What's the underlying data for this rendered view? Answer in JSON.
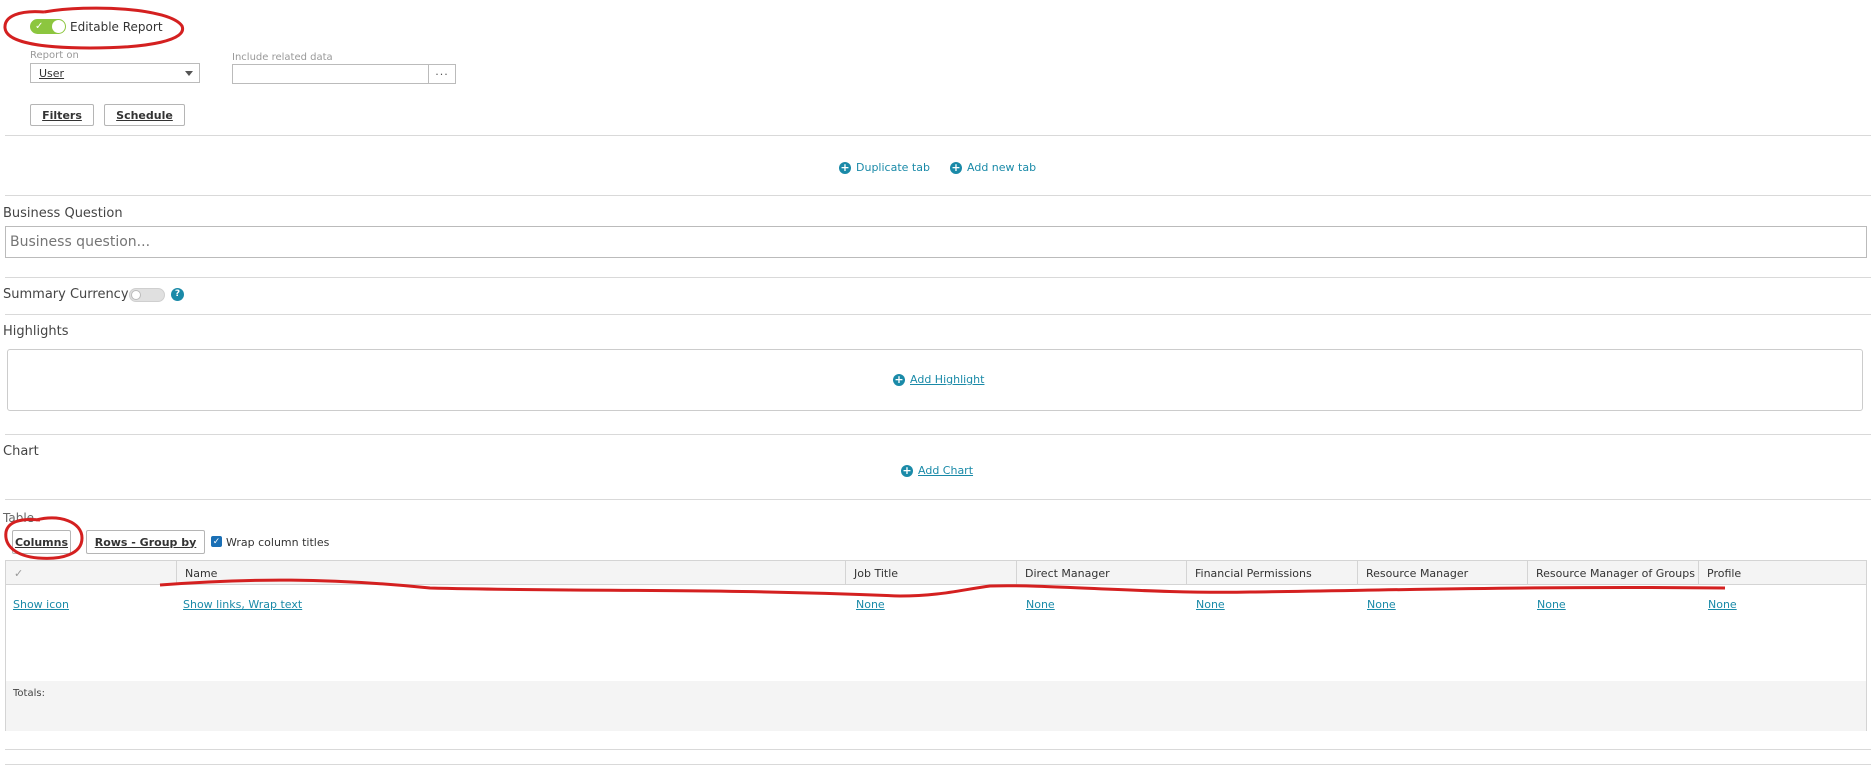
{
  "header": {
    "editable_report_label": "Editable Report",
    "report_on_label": "Report on",
    "report_on_value": "User",
    "include_related_label": "Include related data",
    "include_related_value": "",
    "ellipsis_label": "···",
    "filters_button": "Filters",
    "schedule_button": "Schedule"
  },
  "tabs": {
    "duplicate_tab": "Duplicate tab",
    "add_new_tab": "Add new tab"
  },
  "business_question": {
    "label": "Business Question",
    "placeholder": "Business question..."
  },
  "summary_currency": {
    "label": "Summary Currency",
    "help": "?"
  },
  "highlights": {
    "label": "Highlights",
    "add": "Add Highlight"
  },
  "chart": {
    "label": "Chart",
    "add": "Add Chart"
  },
  "table": {
    "label": "Table",
    "columns_button": "Columns",
    "rows_group_by_button": "Rows - Group by",
    "wrap_label": "Wrap column titles",
    "check_header": "✓",
    "headers": [
      "Name",
      "Job Title",
      "Direct Manager",
      "Financial Permissions",
      "Resource Manager",
      "Resource Manager of Groups",
      "Profile"
    ],
    "row": [
      "Show icon",
      "Show links, Wrap text",
      "None",
      "None",
      "None",
      "None",
      "None",
      "None"
    ],
    "totals_label": "Totals:"
  },
  "colors": {
    "accent": "#1a8aa8",
    "toggle_on": "#8cc63f",
    "annotation": "#d42020"
  }
}
